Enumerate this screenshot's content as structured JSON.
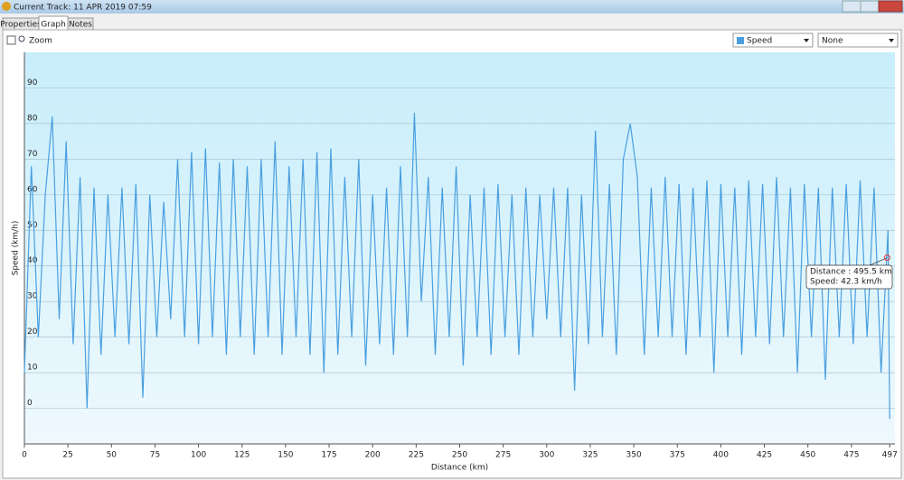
{
  "window": {
    "title": "Current Track: 11 APR 2019 07:59"
  },
  "tabs": [
    "Properties",
    "Graph",
    "Notes"
  ],
  "toolbar": {
    "zoom": "Zoom",
    "series_select": "Speed",
    "second_select": "None"
  },
  "chart_data": {
    "type": "line",
    "x_label": "Distance  (km)",
    "y_label": "Speed (km/h)",
    "color": "#4a9fe0",
    "x": [
      0,
      4,
      8,
      12,
      16,
      20,
      24,
      28,
      32,
      36,
      40,
      44,
      48,
      52,
      56,
      60,
      64,
      68,
      72,
      76,
      80,
      84,
      88,
      92,
      96,
      100,
      104,
      108,
      112,
      116,
      120,
      124,
      128,
      132,
      136,
      140,
      144,
      148,
      152,
      156,
      160,
      164,
      168,
      172,
      176,
      180,
      184,
      188,
      192,
      196,
      200,
      204,
      208,
      212,
      216,
      220,
      224,
      228,
      232,
      236,
      240,
      244,
      248,
      252,
      256,
      260,
      264,
      268,
      272,
      276,
      280,
      284,
      288,
      292,
      296,
      300,
      304,
      308,
      312,
      316,
      320,
      324,
      328,
      332,
      336,
      340,
      344,
      348,
      352,
      356,
      360,
      364,
      368,
      372,
      376,
      380,
      384,
      388,
      392,
      396,
      400,
      404,
      408,
      412,
      416,
      420,
      424,
      428,
      432,
      436,
      440,
      444,
      448,
      452,
      456,
      460,
      464,
      468,
      472,
      476,
      480,
      484,
      488,
      492,
      496,
      497
    ],
    "values": [
      10,
      68,
      20,
      60,
      82,
      25,
      75,
      18,
      65,
      0,
      62,
      15,
      60,
      20,
      62,
      18,
      63,
      3,
      60,
      20,
      58,
      25,
      70,
      20,
      72,
      18,
      73,
      20,
      69,
      15,
      70,
      20,
      68,
      15,
      70,
      20,
      75,
      15,
      68,
      20,
      70,
      15,
      72,
      10,
      73,
      15,
      65,
      20,
      70,
      12,
      60,
      18,
      62,
      15,
      68,
      20,
      83,
      30,
      65,
      15,
      62,
      20,
      68,
      12,
      60,
      20,
      62,
      15,
      63,
      20,
      60,
      15,
      62,
      20,
      60,
      25,
      62,
      20,
      62,
      5,
      60,
      18,
      78,
      20,
      63,
      15,
      70,
      80,
      65,
      15,
      62,
      20,
      65,
      20,
      63,
      15,
      62,
      20,
      64,
      10,
      63,
      20,
      62,
      15,
      64,
      20,
      63,
      18,
      65,
      20,
      62,
      10,
      63,
      20,
      62,
      8,
      62,
      20,
      63,
      18,
      64,
      20,
      62,
      10,
      50,
      -3
    ],
    "xlim": [
      0,
      500
    ],
    "ylim": [
      -10,
      100
    ],
    "xticks": [
      0,
      25,
      50,
      75,
      100,
      125,
      150,
      175,
      200,
      225,
      250,
      275,
      300,
      325,
      350,
      375,
      400,
      425,
      450,
      475,
      497
    ],
    "yticks": [
      0,
      10,
      20,
      30,
      40,
      50,
      60,
      70,
      80,
      90
    ],
    "grid": true,
    "tooltip": {
      "x": 495.5,
      "y": 42.3,
      "lines": [
        "Distance : 495.5 km",
        "Speed: 42.3 km/h"
      ]
    }
  }
}
